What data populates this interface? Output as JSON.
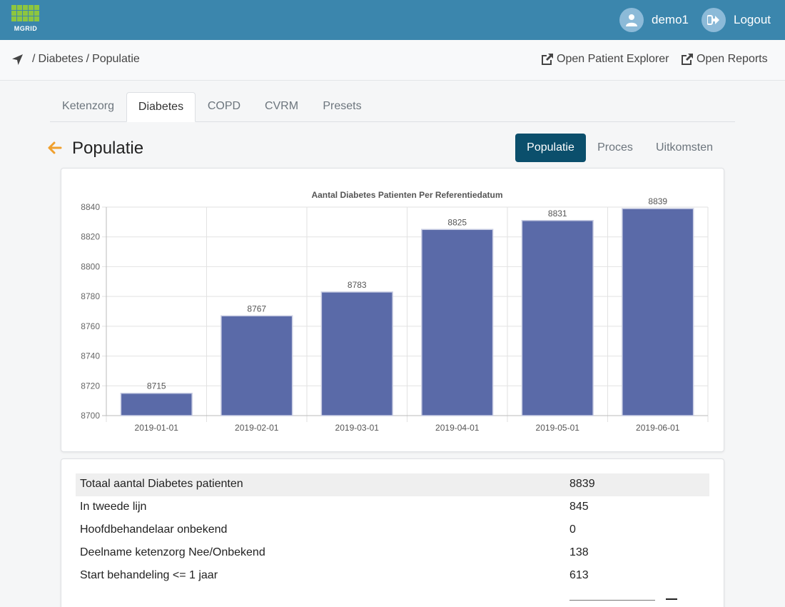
{
  "header": {
    "logo_text": "MGRID",
    "user_name": "demo1",
    "logout_label": "Logout",
    "colors": {
      "topbar": "#3b86ad",
      "logo_green": "#8dc63f"
    }
  },
  "breadcrumb": {
    "items": [
      "Diabetes",
      "Populatie"
    ],
    "separator": "/",
    "icon": "location-arrow-icon"
  },
  "links": {
    "patient_explorer": "Open Patient Explorer",
    "reports": "Open Reports"
  },
  "tabs": [
    "Ketenzorg",
    "Diabetes",
    "COPD",
    "CVRM",
    "Presets"
  ],
  "active_tab": "Diabetes",
  "page": {
    "title": "Populatie"
  },
  "subtabs": [
    "Populatie",
    "Proces",
    "Uitkomsten"
  ],
  "active_subtab": "Populatie",
  "chart_data": {
    "type": "bar",
    "title": "Aantal Diabetes Patienten Per Referentiedatum",
    "xlabel": "",
    "ylabel": "",
    "categories": [
      "2019-01-01",
      "2019-02-01",
      "2019-03-01",
      "2019-04-01",
      "2019-05-01",
      "2019-06-01"
    ],
    "values": [
      8715,
      8767,
      8783,
      8825,
      8831,
      8839
    ],
    "ylim": [
      8700,
      8840
    ],
    "yticks": [
      8700,
      8720,
      8740,
      8760,
      8780,
      8800,
      8820,
      8840
    ],
    "grid": true,
    "data_labels": true,
    "bar_color": "#5a6aa8"
  },
  "stats": [
    {
      "label": "Totaal aantal Diabetes patienten",
      "value": "8839"
    },
    {
      "label": "In tweede lijn",
      "value": "845"
    },
    {
      "label": "Hoofdbehandelaar onbekend",
      "value": "0"
    },
    {
      "label": "Deelname ketenzorg Nee/Onbekend",
      "value": "138"
    },
    {
      "label": "Start behandeling <= 1 jaar",
      "value": "613"
    }
  ]
}
